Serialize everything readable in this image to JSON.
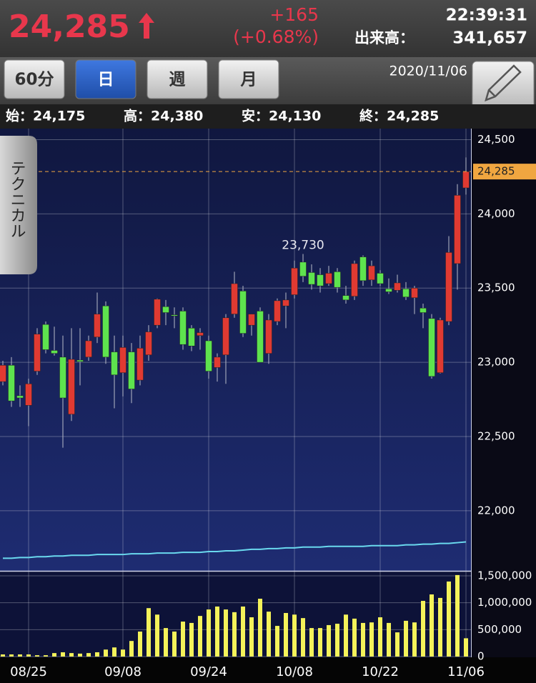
{
  "header": {
    "price": "24,285",
    "change": "+165",
    "change_pct": "(+0.68%)",
    "time": "22:39:31",
    "volume_label": "出来高：",
    "volume": "341,657"
  },
  "toolbar": {
    "buttons": [
      "60分",
      "日",
      "週",
      "月"
    ],
    "date": "2020/11/06"
  },
  "ohlc_summary": [
    "始：24,175",
    "高：24,380",
    "安：24,130",
    "終：24,285"
  ],
  "side_tab": "テクニカル",
  "chart_data": {
    "type": "candlestick",
    "categories": [
      null,
      null,
      null,
      "08/25",
      null,
      null,
      null,
      null,
      null,
      null,
      null,
      null,
      null,
      null,
      "09/08",
      null,
      null,
      null,
      null,
      null,
      null,
      null,
      null,
      null,
      "09/24",
      null,
      null,
      null,
      null,
      null,
      null,
      null,
      null,
      null,
      "10/08",
      null,
      null,
      null,
      null,
      null,
      null,
      null,
      null,
      null,
      "10/22",
      null,
      null,
      null,
      null,
      null,
      null,
      null,
      null,
      null,
      "11/06"
    ],
    "open": [
      22870,
      22980,
      22775,
      22710,
      22940,
      23255,
      23080,
      23035,
      22650,
      23015,
      23035,
      23170,
      23380,
      23070,
      22930,
      23070,
      22880,
      23050,
      23250,
      23375,
      23320,
      23345,
      23230,
      23180,
      23145,
      22965,
      23050,
      23325,
      23480,
      23250,
      23345,
      23060,
      23275,
      23380,
      23455,
      23675,
      23605,
      23590,
      23530,
      23610,
      23450,
      23445,
      23710,
      23555,
      23600,
      23495,
      23485,
      23495,
      23435,
      23365,
      23295,
      22930,
      23275,
      23665,
      24175
    ],
    "high": [
      23010,
      23035,
      22845,
      22890,
      23230,
      23275,
      23240,
      23180,
      23230,
      23230,
      23180,
      23470,
      23410,
      23180,
      23180,
      23130,
      23180,
      23250,
      23430,
      23420,
      23370,
      23370,
      23250,
      23230,
      23180,
      23060,
      23325,
      23610,
      23515,
      23325,
      23370,
      23325,
      23430,
      23470,
      23685,
      23730,
      23660,
      23635,
      23650,
      23635,
      23515,
      23685,
      23720,
      23685,
      23620,
      23565,
      23590,
      23540,
      23515,
      23395,
      23325,
      23300,
      23850,
      24200,
      24380
    ],
    "low": [
      22845,
      22700,
      22700,
      22570,
      22915,
      23060,
      23045,
      22425,
      22605,
      22845,
      23010,
      23130,
      22990,
      22690,
      22770,
      22725,
      22845,
      23010,
      23230,
      23250,
      23230,
      23085,
      23075,
      23085,
      22890,
      22870,
      22855,
      23300,
      23170,
      23180,
      23000,
      22990,
      23250,
      23230,
      23430,
      23540,
      23490,
      23470,
      23515,
      23470,
      23395,
      23420,
      23515,
      23515,
      23515,
      23460,
      23470,
      23420,
      23325,
      23230,
      22890,
      22925,
      23250,
      23490,
      24130
    ],
    "close": [
      22980,
      22740,
      22760,
      22855,
      23190,
      23085,
      23060,
      22760,
      23020,
      23005,
      23145,
      23325,
      23035,
      22915,
      23100,
      22820,
      23095,
      23205,
      23425,
      23335,
      23315,
      23120,
      23110,
      23200,
      22940,
      23035,
      23300,
      23530,
      23195,
      23325,
      23000,
      23285,
      23415,
      23420,
      23635,
      23580,
      23525,
      23515,
      23600,
      23505,
      23420,
      23665,
      23550,
      23650,
      23530,
      23475,
      23535,
      23440,
      23500,
      23335,
      22905,
      23285,
      23740,
      24125,
      24285
    ],
    "volume": [
      40000,
      40000,
      40000,
      40000,
      25000,
      25000,
      65000,
      80000,
      65000,
      55000,
      65000,
      80000,
      130000,
      170000,
      130000,
      290000,
      465000,
      900000,
      780000,
      530000,
      465000,
      650000,
      625000,
      755000,
      875000,
      930000,
      875000,
      825000,
      930000,
      730000,
      1075000,
      835000,
      570000,
      810000,
      780000,
      715000,
      530000,
      530000,
      585000,
      610000,
      780000,
      705000,
      625000,
      635000,
      730000,
      625000,
      450000,
      665000,
      635000,
      1035000,
      1155000,
      1090000,
      1395000,
      1515000,
      340000
    ],
    "ma": [
      21680,
      21680,
      21685,
      21685,
      21690,
      21690,
      21695,
      21695,
      21700,
      21700,
      21700,
      21705,
      21705,
      21705,
      21705,
      21710,
      21710,
      21710,
      21715,
      21715,
      21715,
      21720,
      21720,
      21720,
      21725,
      21725,
      21730,
      21730,
      21735,
      21740,
      21740,
      21745,
      21745,
      21750,
      21750,
      21755,
      21755,
      21755,
      21760,
      21760,
      21760,
      21760,
      21760,
      21765,
      21765,
      21765,
      21765,
      21770,
      21770,
      21775,
      21775,
      21780,
      21780,
      21785,
      21790
    ],
    "ylim": [
      21600,
      24560
    ],
    "yticks": [
      {
        "value": 22000,
        "label": "22,000"
      },
      {
        "value": 22500,
        "label": "22,500"
      },
      {
        "value": 23000,
        "label": "23,000"
      },
      {
        "value": 23500,
        "label": "23,500"
      },
      {
        "value": 24000,
        "label": "24,000"
      },
      {
        "value": 24500,
        "label": "24,500"
      }
    ],
    "y2lim": [
      0,
      1580000
    ],
    "y2ticks": [
      0,
      {
        "value": 500000,
        "label": "500,000"
      },
      {
        "value": 1000000,
        "label": "1,000,000"
      },
      {
        "value": 1500000,
        "label": "1,500,000"
      }
    ],
    "current_price": {
      "value": 24285,
      "label": "24,285"
    },
    "high_annotation": {
      "value": 23730,
      "label": "23,730"
    },
    "grid": true,
    "up_color": "#e03a32",
    "down_color": "#5ee34e",
    "volume_color": "#f4f25a",
    "ma_color": "#6ad9ee",
    "current_color": "#f0a640"
  }
}
